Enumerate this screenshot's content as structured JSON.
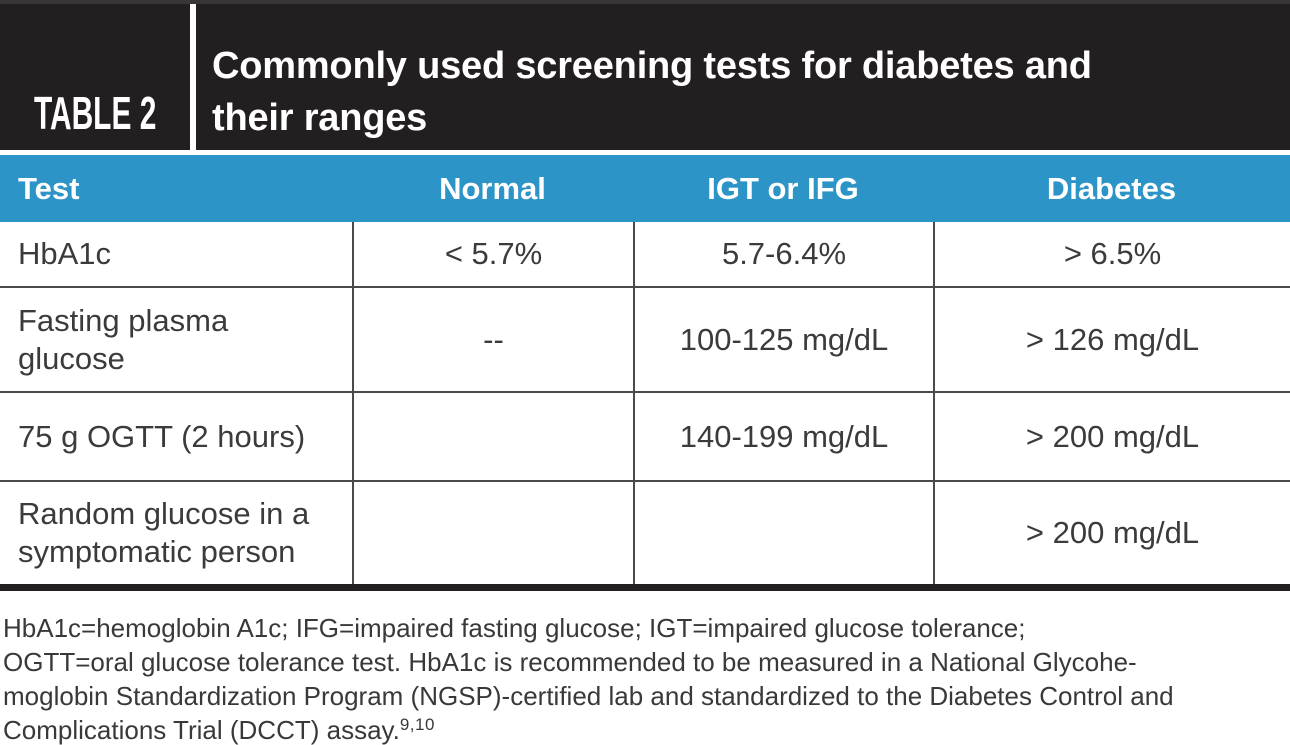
{
  "header": {
    "label": "TABLE 2",
    "title_lines": [
      "Commonly used screening tests for diabetes and",
      "their ranges"
    ]
  },
  "columns": [
    "Test",
    "Normal",
    "IGT or IFG",
    "Diabetes"
  ],
  "rows": [
    {
      "test": "HbA1c",
      "normal": "< 5.7%",
      "igt_ifg": "5.7-6.4%",
      "diabetes": "> 6.5%"
    },
    {
      "test": "Fasting plasma glucose",
      "normal": "--",
      "igt_ifg": "100-125 mg/dL",
      "diabetes": "> 126 mg/dL"
    },
    {
      "test": "75 g OGTT (2 hours)",
      "normal": "",
      "igt_ifg": "140-199 mg/dL",
      "diabetes": "> 200 mg/dL"
    },
    {
      "test": "Random glucose in a symptomatic person",
      "normal": "",
      "igt_ifg": "",
      "diabetes": "> 200 mg/dL"
    }
  ],
  "footnote": {
    "lines": [
      "HbA1c=hemoglobin A1c; IFG=impaired fasting glucose; IGT=impaired glucose tolerance;",
      "OGTT=oral glucose tolerance test. HbA1c is recommended to be measured in a National Glycohe-",
      "moglobin Standardization Program (NGSP)-certified lab and standardized to the Diabetes Control and",
      "Complications Trial (DCCT) assay."
    ],
    "reference_superscript": "9,10"
  },
  "colors": {
    "header_black": "#231f20",
    "accent_blue": "#2d94c8",
    "body_text": "#3b3b3c",
    "thin_border": "#4a4a4b",
    "thick_border": "#232021"
  }
}
